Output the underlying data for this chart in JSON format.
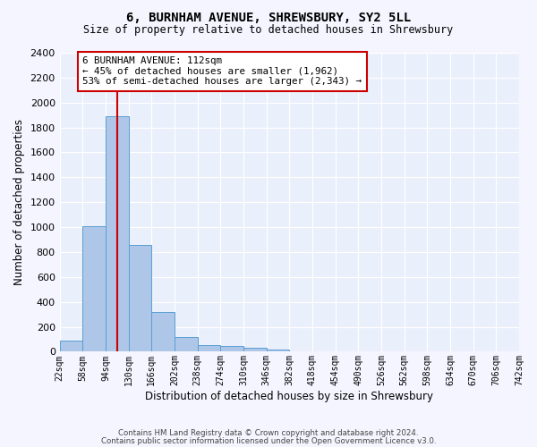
{
  "title1": "6, BURNHAM AVENUE, SHREWSBURY, SY2 5LL",
  "title2": "Size of property relative to detached houses in Shrewsbury",
  "xlabel": "Distribution of detached houses by size in Shrewsbury",
  "ylabel": "Number of detached properties",
  "bin_labels": [
    "22sqm",
    "58sqm",
    "94sqm",
    "130sqm",
    "166sqm",
    "202sqm",
    "238sqm",
    "274sqm",
    "310sqm",
    "346sqm",
    "382sqm",
    "418sqm",
    "454sqm",
    "490sqm",
    "526sqm",
    "562sqm",
    "598sqm",
    "634sqm",
    "670sqm",
    "706sqm",
    "742sqm"
  ],
  "bar_values": [
    90,
    1010,
    1890,
    860,
    320,
    115,
    50,
    45,
    30,
    20,
    0,
    0,
    0,
    0,
    0,
    0,
    0,
    0,
    0,
    0
  ],
  "bar_color": "#aec6e8",
  "bar_edge_color": "#5a9fd4",
  "background_color": "#eaf0fb",
  "grid_color": "#ffffff",
  "vline_x": 112,
  "vline_color": "#cc0000",
  "annotation_text": "6 BURNHAM AVENUE: 112sqm\n← 45% of detached houses are smaller (1,962)\n53% of semi-detached houses are larger (2,343) →",
  "annotation_box_color": "#ffffff",
  "annotation_box_edge": "#cc0000",
  "footer1": "Contains HM Land Registry data © Crown copyright and database right 2024.",
  "footer2": "Contains public sector information licensed under the Open Government Licence v3.0.",
  "ylim": [
    0,
    2400
  ],
  "yticks": [
    0,
    200,
    400,
    600,
    800,
    1000,
    1200,
    1400,
    1600,
    1800,
    2000,
    2200,
    2400
  ],
  "bin_edges": [
    22,
    58,
    94,
    130,
    166,
    202,
    238,
    274,
    310,
    346,
    382,
    418,
    454,
    490,
    526,
    562,
    598,
    634,
    670,
    706,
    742
  ]
}
